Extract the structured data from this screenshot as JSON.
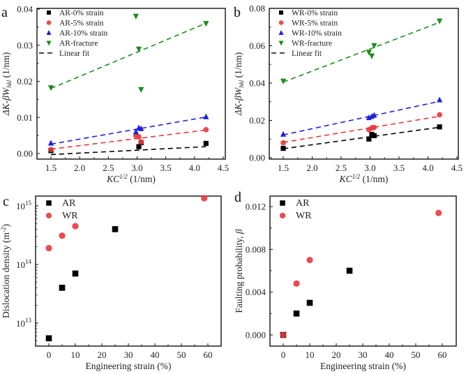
{
  "chart_data": [
    {
      "panel": "a",
      "type": "scatter",
      "title": "",
      "xlabel": "KC^1/2 (1/nm)",
      "ylabel": "ΔK-βW_hkl (1/nm)",
      "xlim": [
        1.25,
        4.5
      ],
      "ylim": [
        -0.0015,
        0.04
      ],
      "xticks": [
        1.5,
        2.0,
        2.5,
        3.0,
        3.5,
        4.0,
        4.5
      ],
      "xtick_labels": [
        "1.5",
        "2.0",
        "2.5",
        "3.0",
        "3.5",
        "4.0",
        "4.5"
      ],
      "yticks": [
        0.0,
        0.01,
        0.02,
        0.03,
        0.04
      ],
      "ytick_labels": [
        "0.00",
        "0.01",
        "0.02",
        "0.03",
        "0.04"
      ],
      "legend_position": "top-left",
      "series": [
        {
          "name": "AR-0% strain",
          "color": "#000000",
          "marker": "square",
          "x": [
            1.5,
            3.03,
            3.07,
            4.2
          ],
          "y": [
            0.0008,
            0.0019,
            0.003,
            0.0028
          ],
          "fit": {
            "x": [
              1.5,
              4.2
            ],
            "y": [
              -0.0003,
              0.0019
            ]
          }
        },
        {
          "name": "AR-5% strain",
          "color": "#e8383d",
          "marker": "circle",
          "x": [
            1.5,
            2.98,
            3.03,
            3.07,
            4.2
          ],
          "y": [
            0.0011,
            0.0049,
            0.0046,
            0.0032,
            0.0066
          ],
          "fit": {
            "x": [
              1.5,
              4.2
            ],
            "y": [
              0.0012,
              0.0065
            ]
          }
        },
        {
          "name": "AR-10% strain",
          "color": "#1f1fe0",
          "marker": "triangle-up",
          "x": [
            1.5,
            2.98,
            3.03,
            3.07,
            4.2
          ],
          "y": [
            0.0029,
            0.006,
            0.0071,
            0.0069,
            0.0102
          ],
          "fit": {
            "x": [
              1.5,
              4.2
            ],
            "y": [
              0.0026,
              0.0101
            ]
          }
        },
        {
          "name": "AR-fracture",
          "color": "#1e8a1e",
          "marker": "triangle-down",
          "x": [
            1.5,
            2.98,
            3.03,
            3.07,
            4.2
          ],
          "y": [
            0.0182,
            0.038,
            0.0289,
            0.0177,
            0.036
          ],
          "fit": {
            "x": [
              1.5,
              4.2
            ],
            "y": [
              0.018,
              0.0361
            ]
          }
        }
      ],
      "fit_legend": "Linear fit"
    },
    {
      "panel": "b",
      "type": "scatter",
      "title": "",
      "xlabel": "KC^1/2 (1/nm)",
      "ylabel": "ΔK-βW_hkl (1/nm)",
      "xlim": [
        1.25,
        4.5
      ],
      "ylim": [
        0.0,
        0.08
      ],
      "xticks": [
        1.5,
        2.0,
        2.5,
        3.0,
        3.5,
        4.0,
        4.5
      ],
      "xtick_labels": [
        "1.5",
        "2.0",
        "2.5",
        "3.0",
        "3.5",
        "4.0",
        "4.5"
      ],
      "yticks": [
        0.0,
        0.02,
        0.04,
        0.06,
        0.08
      ],
      "ytick_labels": [
        "0.00",
        "0.02",
        "0.04",
        "0.06",
        "0.08"
      ],
      "legend_position": "top-left",
      "series": [
        {
          "name": "WR-0% strain",
          "color": "#000000",
          "marker": "square",
          "x": [
            1.5,
            2.98,
            3.03,
            3.07,
            4.2
          ],
          "y": [
            0.005,
            0.01,
            0.0125,
            0.0118,
            0.0165
          ],
          "fit": {
            "x": [
              1.5,
              4.2
            ],
            "y": [
              0.0048,
              0.0163
            ]
          }
        },
        {
          "name": "WR-5% strain",
          "color": "#e8383d",
          "marker": "circle",
          "x": [
            1.5,
            2.98,
            3.03,
            3.07,
            4.2
          ],
          "y": [
            0.008,
            0.015,
            0.016,
            0.0162,
            0.023
          ],
          "fit": {
            "x": [
              1.5,
              4.2
            ],
            "y": [
              0.0082,
              0.0222
            ]
          }
        },
        {
          "name": "WR-10% strain",
          "color": "#1f1fe0",
          "marker": "triangle-up",
          "x": [
            1.5,
            2.98,
            3.03,
            3.07,
            4.2
          ],
          "y": [
            0.0126,
            0.0215,
            0.0222,
            0.0228,
            0.031
          ],
          "fit": {
            "x": [
              1.5,
              4.2
            ],
            "y": [
              0.0122,
              0.0302
            ]
          }
        },
        {
          "name": "WR-fracture",
          "color": "#1e8a1e",
          "marker": "triangle-down",
          "x": [
            1.5,
            2.98,
            3.03,
            3.07,
            4.2
          ],
          "y": [
            0.041,
            0.0565,
            0.0545,
            0.06,
            0.0732
          ],
          "fit": {
            "x": [
              1.5,
              4.2
            ],
            "y": [
              0.0405,
              0.0725
            ]
          }
        }
      ],
      "fit_legend": "Linear fit"
    },
    {
      "panel": "c",
      "type": "scatter",
      "title": "",
      "xlabel": "Engineering strain (%)",
      "ylabel": "Dislocation density (m^-2)",
      "xlim": [
        -5,
        65
      ],
      "ylim": [
        3000000000000.0,
        1800000000000000.0
      ],
      "yscale": "log",
      "xticks": [
        0,
        10,
        20,
        30,
        40,
        50,
        60
      ],
      "xtick_labels": [
        "0",
        "10",
        "20",
        "30",
        "40",
        "50",
        "60"
      ],
      "yticks": [
        10000000000000.0,
        100000000000000.0,
        1000000000000000.0
      ],
      "ytick_labels": [
        {
          "base": "10",
          "exp": "13"
        },
        {
          "base": "10",
          "exp": "14"
        },
        {
          "base": "10",
          "exp": "15"
        }
      ],
      "legend_position": "top-left",
      "series": [
        {
          "name": "AR",
          "color": "#000000",
          "marker": "square",
          "x": [
            0,
            5,
            10,
            25
          ],
          "y": [
            5500000000000.0,
            40000000000000.0,
            70000000000000.0,
            400000000000000.0
          ]
        },
        {
          "name": "WR",
          "color": "#e8383d",
          "marker": "circle",
          "x": [
            0,
            5,
            10,
            58.6
          ],
          "y": [
            190000000000000.0,
            310000000000000.0,
            450000000000000.0,
            1350000000000000.0
          ]
        }
      ]
    },
    {
      "panel": "d",
      "type": "scatter",
      "title": "",
      "xlabel": "Engineering strain (%)",
      "ylabel": "Faulting probability, β",
      "xlim": [
        -5,
        65
      ],
      "ylim": [
        -0.0012,
        0.0132
      ],
      "xticks": [
        0,
        10,
        20,
        30,
        40,
        50,
        60
      ],
      "xtick_labels": [
        "0",
        "10",
        "20",
        "30",
        "40",
        "50",
        "60"
      ],
      "yticks": [
        0.0,
        0.004,
        0.008,
        0.012
      ],
      "ytick_labels": [
        "0.000",
        "0.004",
        "0.008",
        "0.012"
      ],
      "legend_position": "top-left",
      "series": [
        {
          "name": "AR",
          "color": "#000000",
          "marker": "square",
          "x": [
            0,
            5,
            10,
            25
          ],
          "y": [
            0.0,
            0.002,
            0.003,
            0.006
          ]
        },
        {
          "name": "WR",
          "color": "#e8383d",
          "marker": "circle",
          "x": [
            0,
            5,
            10,
            58.6
          ],
          "y": [
            0.0,
            0.0048,
            0.007,
            0.0114
          ]
        }
      ]
    }
  ]
}
